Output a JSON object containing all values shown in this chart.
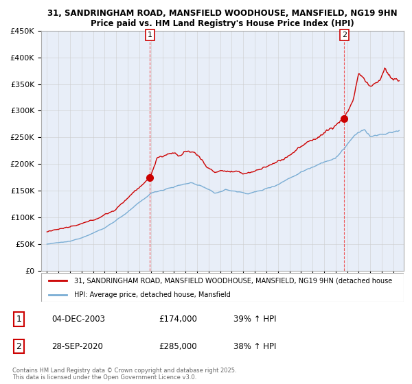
{
  "title_line1": "31, SANDRINGHAM ROAD, MANSFIELD WOODHOUSE, MANSFIELD, NG19 9HN",
  "title_line2": "Price paid vs. HM Land Registry's House Price Index (HPI)",
  "red_label": "31, SANDRINGHAM ROAD, MANSFIELD WOODHOUSE, MANSFIELD, NG19 9HN (detached house",
  "blue_label": "HPI: Average price, detached house, Mansfield",
  "footer": "Contains HM Land Registry data © Crown copyright and database right 2025.\nThis data is licensed under the Open Government Licence v3.0.",
  "sale1_date": "04-DEC-2003",
  "sale1_price": "£174,000",
  "sale1_hpi": "39% ↑ HPI",
  "sale2_date": "28-SEP-2020",
  "sale2_price": "£285,000",
  "sale2_hpi": "38% ↑ HPI",
  "ylim": [
    0,
    450000
  ],
  "yticks": [
    0,
    50000,
    100000,
    150000,
    200000,
    250000,
    300000,
    350000,
    400000,
    450000
  ],
  "ytick_labels": [
    "£0",
    "£50K",
    "£100K",
    "£150K",
    "£200K",
    "£250K",
    "£300K",
    "£350K",
    "£400K",
    "£450K"
  ],
  "red_color": "#cc0000",
  "blue_color": "#7aadd4",
  "dashed_color": "#ee4444",
  "marker1_x": 2003.92,
  "marker1_y": 174000,
  "marker2_x": 2020.75,
  "marker2_y": 285000,
  "background_color": "#ffffff",
  "grid_color": "#cccccc",
  "plot_bg": "#e8eef8",
  "xlim_left": 1994.5,
  "xlim_right": 2025.9
}
